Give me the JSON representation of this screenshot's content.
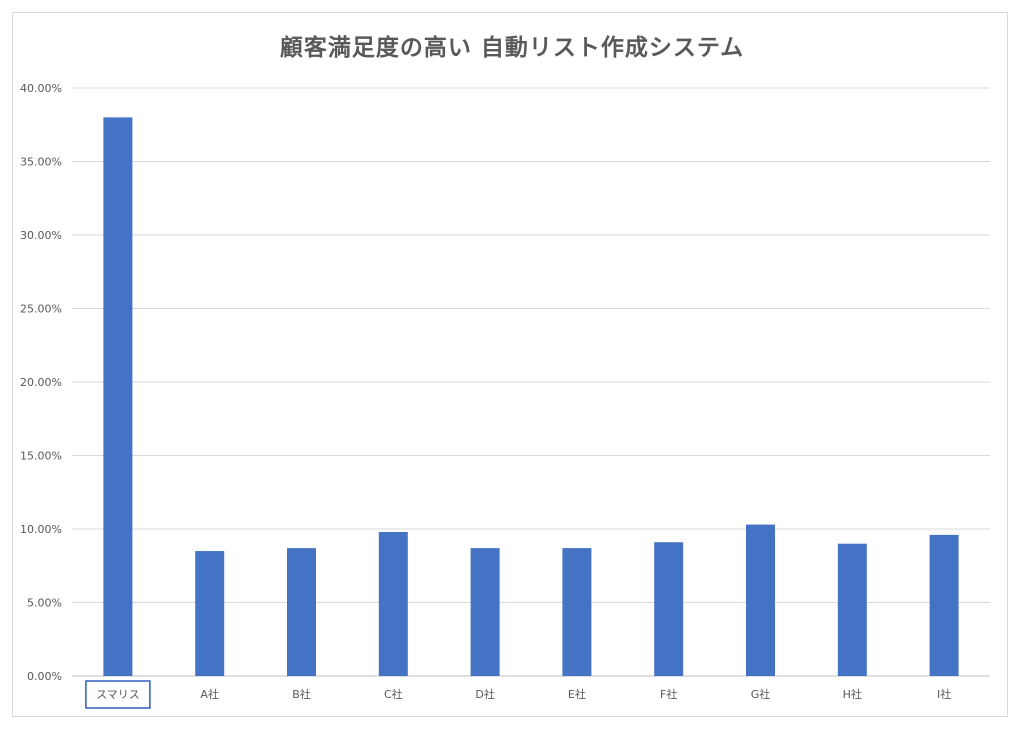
{
  "chart_data": {
    "type": "bar",
    "title": "顧客満足度の高い 自動リスト作成システム",
    "categories": [
      "スマリス",
      "A社",
      "B社",
      "C社",
      "D社",
      "E社",
      "F社",
      "G社",
      "H社",
      "I社"
    ],
    "values": [
      38.0,
      8.5,
      8.7,
      9.8,
      8.7,
      8.7,
      9.1,
      10.3,
      9.0,
      9.6
    ],
    "value_unit": "%",
    "ylim": [
      0,
      40
    ],
    "yticks": [
      "0.00%",
      "5.00%",
      "10.00%",
      "15.00%",
      "20.00%",
      "25.00%",
      "30.00%",
      "35.00%",
      "40.00%"
    ],
    "grid": true,
    "bar_color": "#4472c4",
    "highlight_category": "スマリス",
    "highlight_color": "#2e5fbf"
  }
}
